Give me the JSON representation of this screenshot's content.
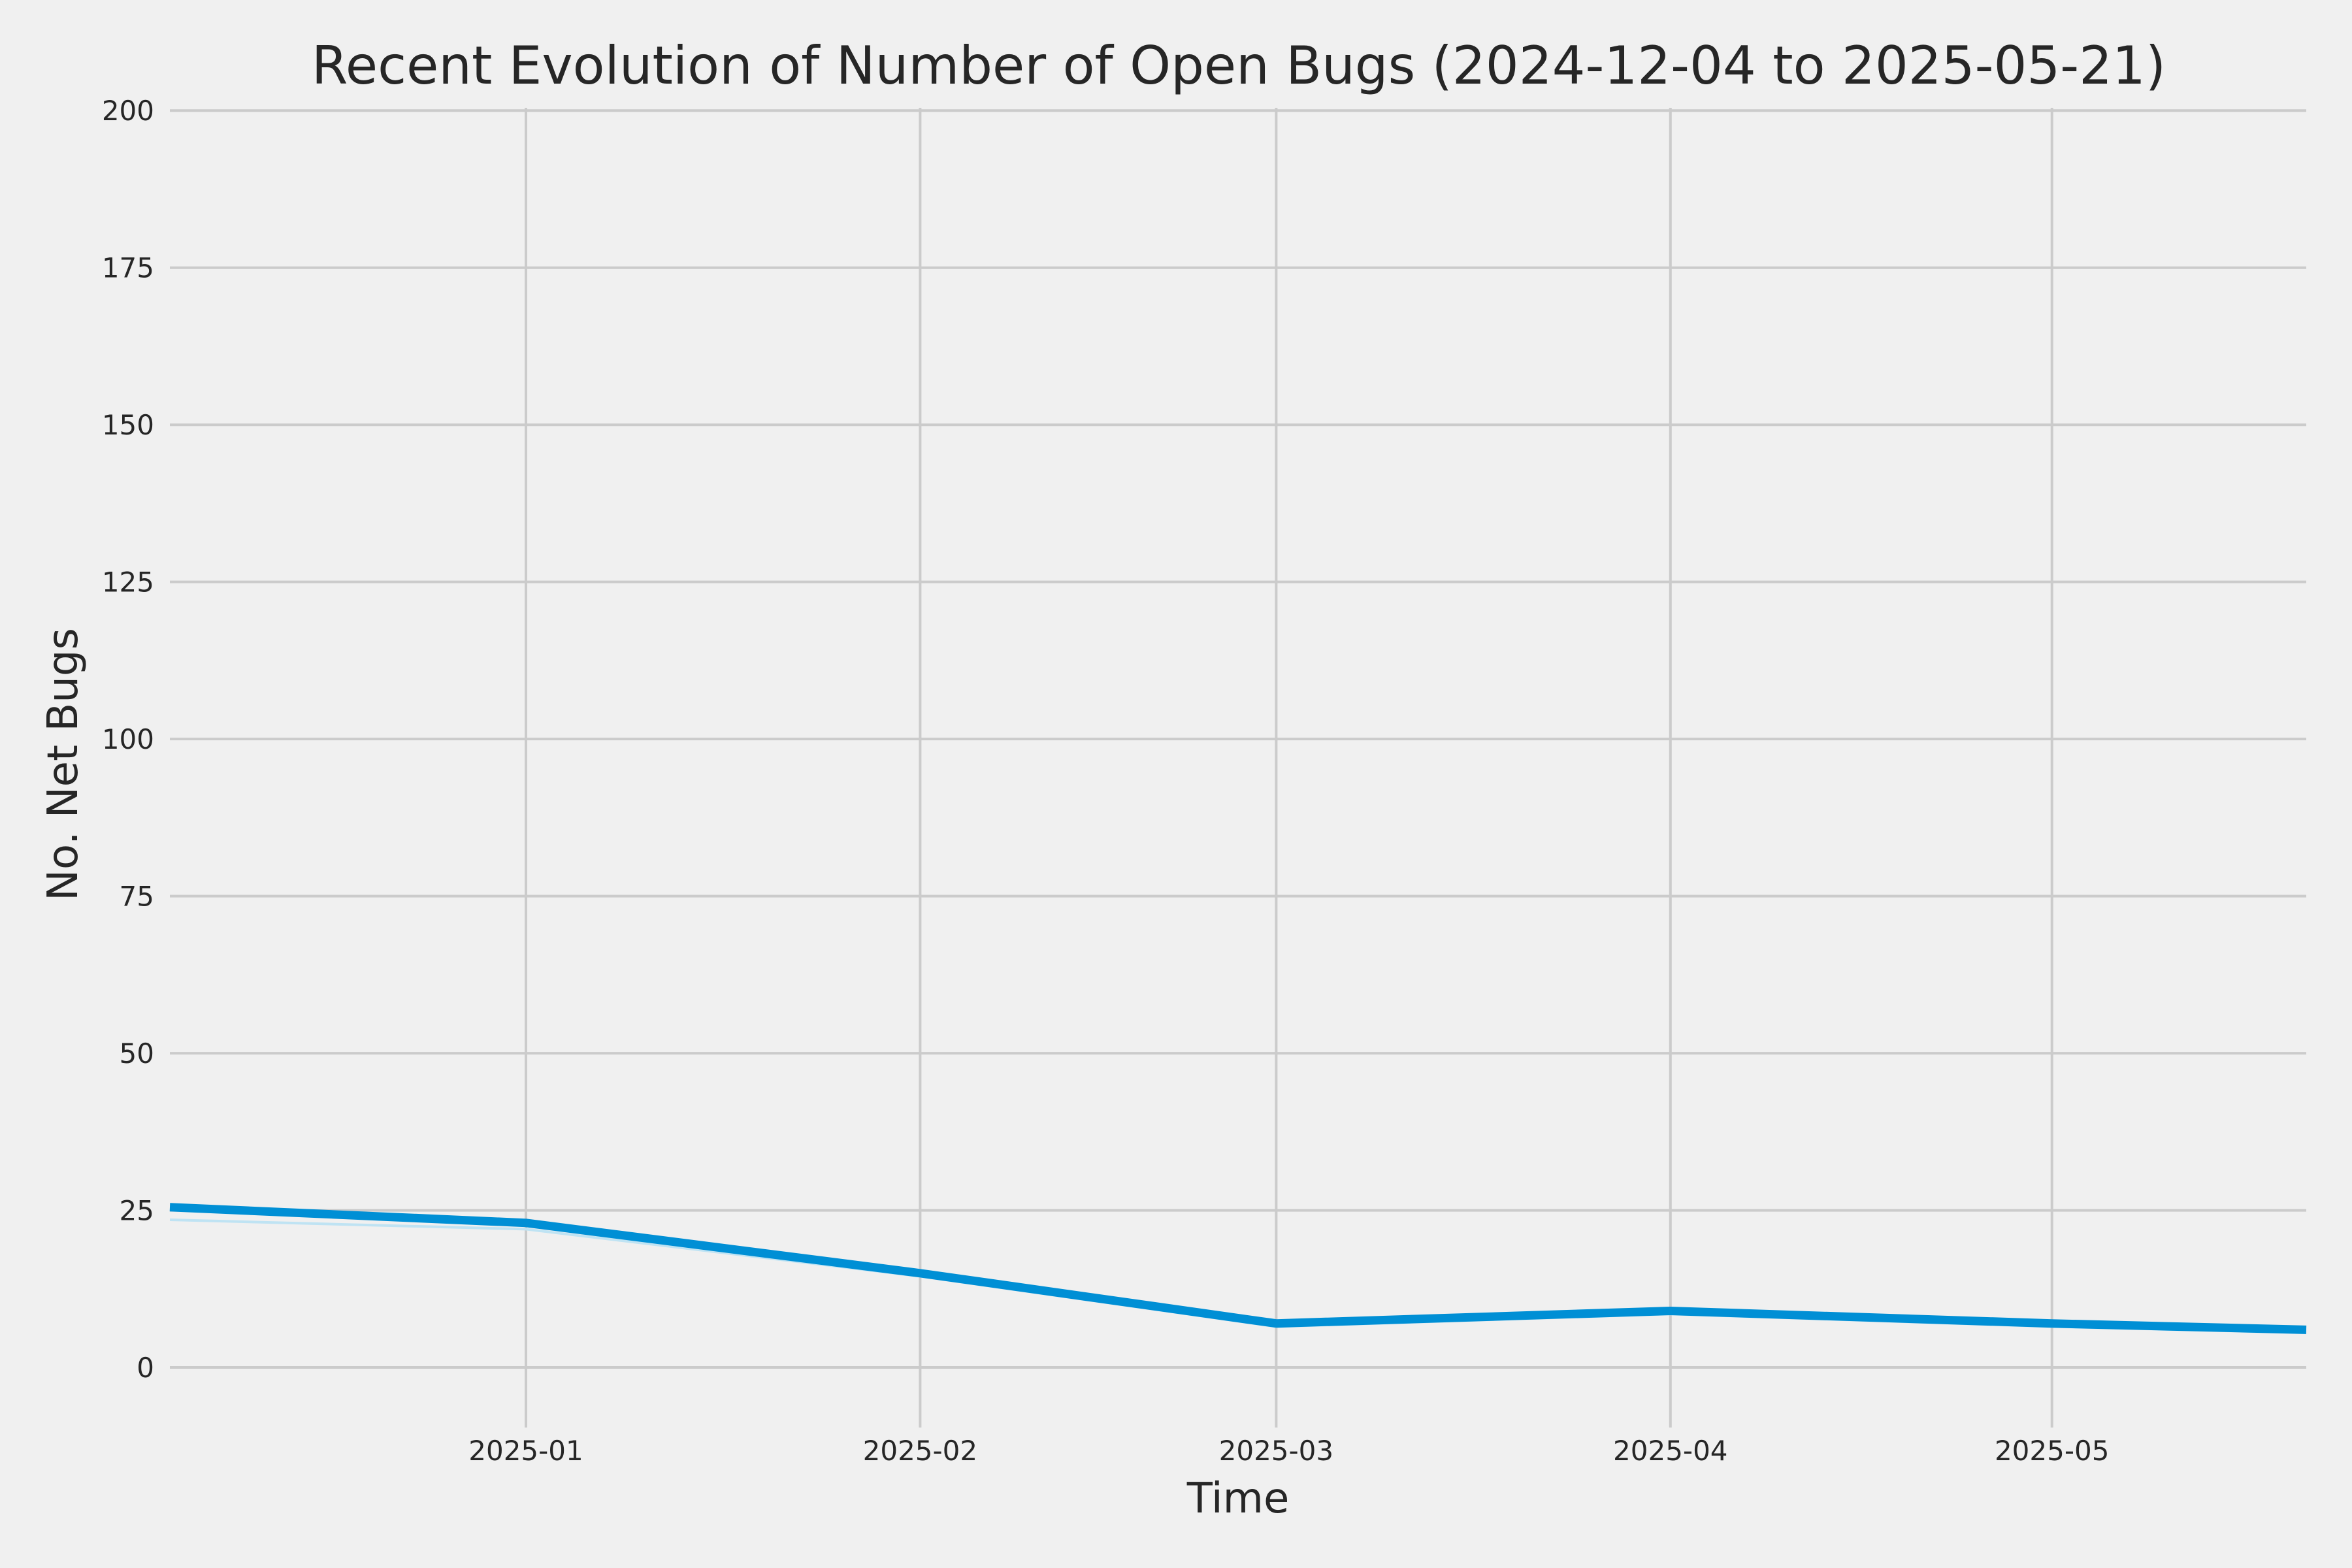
{
  "chart_data": {
    "type": "line",
    "title": "Recent Evolution of Number of Open Bugs (2024-12-04 to 2025-05-21)",
    "xlabel": "Time",
    "ylabel": "No. Net Bugs",
    "x_axis_type": "date",
    "xlim": [
      "2024-12-04",
      "2025-05-21"
    ],
    "ylim": [
      -8,
      202
    ],
    "x_ticks": [
      "2025-01-01",
      "2025-02-01",
      "2025-03-01",
      "2025-04-01",
      "2025-05-01"
    ],
    "x_tick_labels": [
      "2025-01",
      "2025-02",
      "2025-03",
      "2025-04",
      "2025-05"
    ],
    "y_ticks": [
      0,
      25,
      50,
      75,
      100,
      125,
      150,
      175,
      200
    ],
    "y_tick_labels": [
      "0",
      "25",
      "50",
      "75",
      "100",
      "125",
      "150",
      "175",
      "200"
    ],
    "grid": true,
    "legend": "none",
    "series": [
      {
        "color": "#008fd5",
        "x": [
          "2024-12-04",
          "2025-01-01",
          "2025-02-01",
          "2025-03-01",
          "2025-04-01",
          "2025-05-01",
          "2025-05-21"
        ],
        "values": [
          25.5,
          23,
          15,
          7,
          9,
          7,
          6
        ]
      }
    ],
    "lower_band": {
      "color": "#bfe3f3",
      "x": [
        "2024-12-04",
        "2025-01-01",
        "2025-02-01",
        "2025-03-01",
        "2025-04-01",
        "2025-05-01",
        "2025-05-21"
      ],
      "values": [
        23.5,
        22,
        14.5,
        6.5,
        8.5,
        6.5,
        5.5
      ]
    }
  }
}
